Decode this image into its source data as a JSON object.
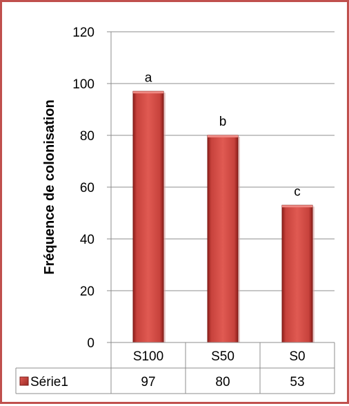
{
  "chart_data": {
    "type": "bar",
    "title": "",
    "xlabel": "",
    "ylabel": "Fréquence de colonisation",
    "categories": [
      "S100",
      "S50",
      "S0"
    ],
    "series": [
      {
        "name": "Série1",
        "values": [
          97,
          80,
          53
        ],
        "color": "#c0504d"
      }
    ],
    "annotations": [
      "a",
      "b",
      "c"
    ],
    "ylim": [
      0,
      120
    ],
    "yticks": [
      0,
      20,
      40,
      60,
      80,
      100,
      120
    ],
    "grid": true,
    "legend": "data-table-bottom",
    "data_table": true
  },
  "colors": {
    "border": "#c0504d",
    "bar": "#c0504d",
    "grid": "#8c8c8c"
  }
}
